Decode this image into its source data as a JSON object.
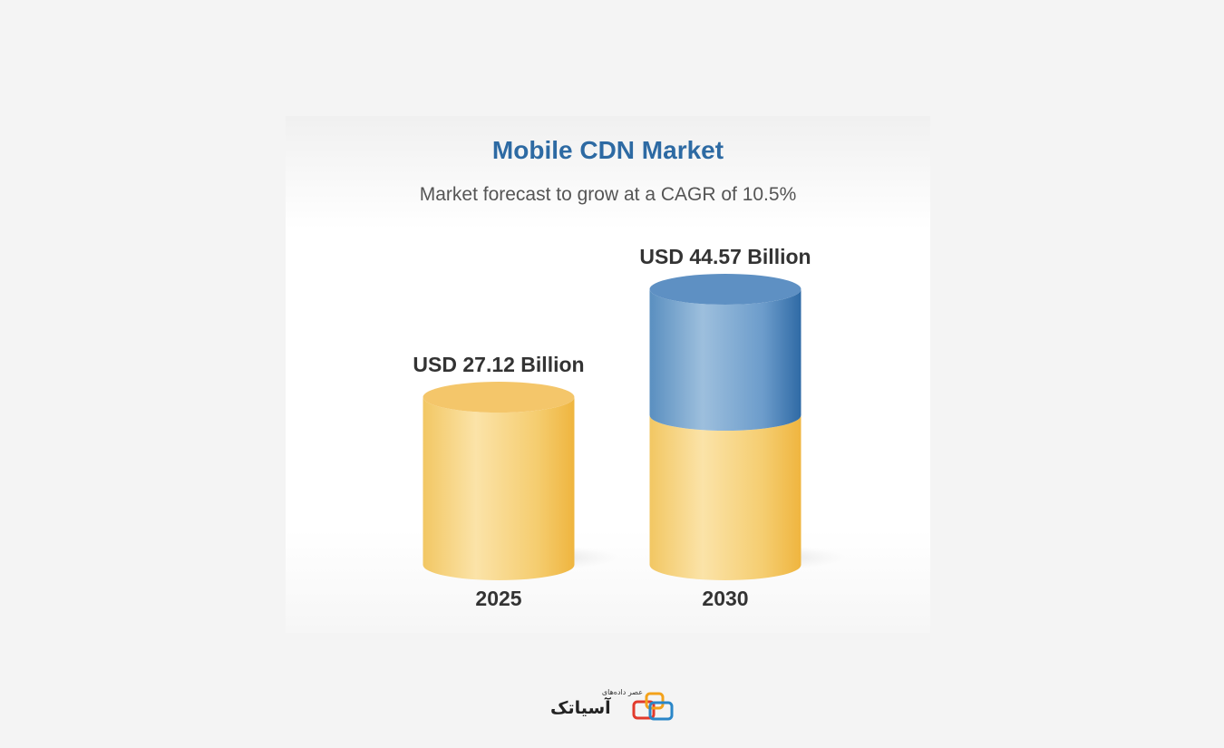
{
  "chart_data": {
    "type": "bar",
    "title": "Mobile CDN Market",
    "subtitle": "Market forecast to grow at a CAGR of 10.5%",
    "categories": [
      "2025",
      "2030"
    ],
    "values": [
      27.12,
      44.57
    ],
    "value_labels": [
      "USD 27.12 Billion",
      "USD 44.57 Billion"
    ],
    "unit": "USD Billion",
    "xlabel": "",
    "ylabel": "",
    "grid": false,
    "legend": "none",
    "colors": {
      "base": "#f2c35a",
      "growth": "#4f86b8",
      "title": "#2d6aa3"
    }
  },
  "watermark": {
    "small_text": "عصر داده‌های",
    "main_text": "آسیاتک"
  }
}
